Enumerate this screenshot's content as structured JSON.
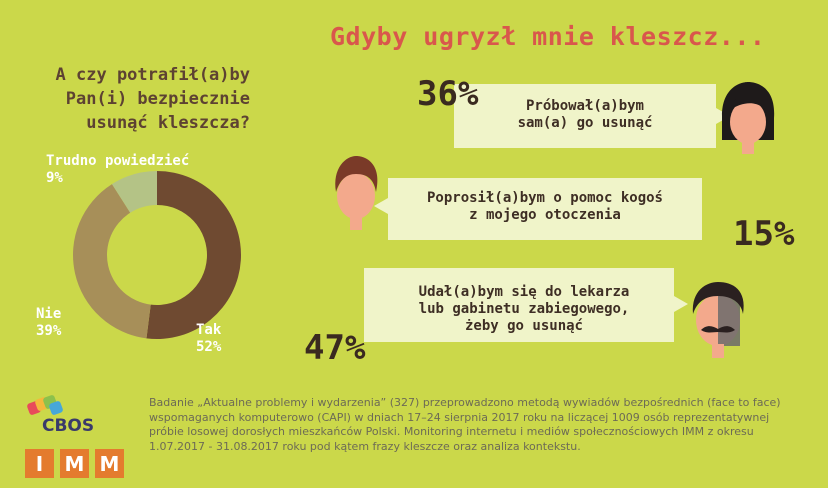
{
  "title": "Gdyby ugryzł mnie kleszcz...",
  "question": [
    "A czy potrafił(a)by",
    "Pan(i) bezpiecznie",
    "usunąć kleszcza?"
  ],
  "chart_data": {
    "type": "pie",
    "categories": [
      "Tak",
      "Nie",
      "Trudno powiedzieć"
    ],
    "values": [
      52,
      39,
      9
    ],
    "value_labels": [
      "52%",
      "39%",
      "9%"
    ],
    "colors": [
      "#6f4a31",
      "#a78f59",
      "#b4c386"
    ],
    "donut": true
  },
  "donut_labels": {
    "trudno": {
      "name": "Trudno powiedzieć",
      "value": "9%"
    },
    "nie": {
      "name": "Nie",
      "value": "39%"
    },
    "tak": {
      "name": "Tak",
      "value": "52%"
    }
  },
  "answers": [
    {
      "percent": "36%",
      "lines": [
        "Próbował(a)bym",
        "sam(a) go usunąć"
      ]
    },
    {
      "percent": "15%",
      "lines": [
        "Poprosił(a)bym o pomoc kogoś",
        "z mojego otoczenia"
      ]
    },
    {
      "percent": "47%",
      "lines": [
        "Udał(a)bym się do lekarza",
        "lub gabinetu zabiegowego,",
        "żeby go usunąć"
      ]
    }
  ],
  "footnote": "Badanie „Aktualne problemy i wydarzenia” (327) przeprowadzono metodą wywiadów bezpośrednich (face to face) wspomaganych komputerowo (CAPI) w dniach 17–24 sierpnia 2017 roku na liczącej 1009 osób reprezentatywnej próbie losowej dorosłych mieszkańców Polski. Monitoring internetu i mediów społecznościowych IMM z okresu 1.07.2017 - 31.08.2017 roku pod kątem frazy kleszcze oraz analiza kontekstu.",
  "logos": {
    "cbos": "CBOS",
    "imm": [
      "I",
      "M",
      "M"
    ]
  },
  "colors": {
    "background": "#cbd84a",
    "title": "#d9574c",
    "bubble": "#f0f4c9",
    "imm": "#e47b2e"
  }
}
